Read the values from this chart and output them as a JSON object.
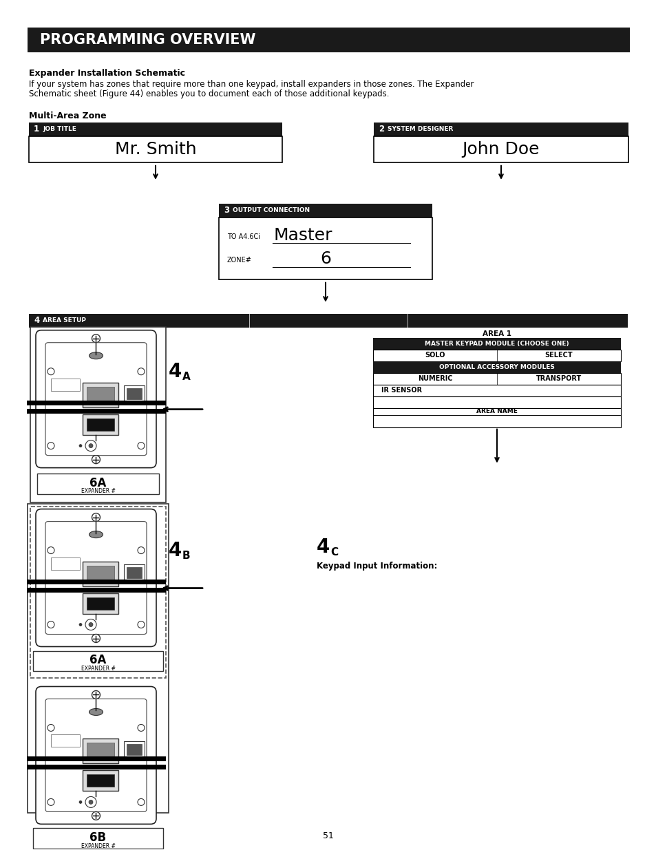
{
  "bg_color": "#ffffff",
  "title_bar_text": "PROGRAMMING OVERVIEW",
  "title_bar_bg": "#1a1a1a",
  "title_bar_color": "#ffffff",
  "section_heading": "Expander Installation Schematic",
  "section_body_1": "If your system has zones that require more than one keypad, install expanders in those zones. The Expander",
  "section_body_2": "Schematic sheet (Figure 44) enables you to document each of those additional keypads.",
  "multi_area_label": "Multi-Area Zone",
  "box1_num": "1",
  "box1_label": "JOB TITLE",
  "box1_value": "Mr. Smith",
  "box2_num": "2",
  "box2_label": "SYSTEM DESIGNER",
  "box2_value": "John Doe",
  "box3_num": "3",
  "box3_label": "OUTPUT CONNECTION",
  "box3_line1_label": "TO A4.6Ci",
  "box3_line1_value": "Master",
  "box3_line2_label": "ZONE#",
  "box3_line2_value": "6",
  "box4_num": "4",
  "box4_label": "AREA SETUP",
  "label_4a": "4",
  "label_4a_sub": "A",
  "label_4b": "4",
  "label_4b_sub": "B",
  "label_4c": "4",
  "label_4c_sub": "C",
  "label_4c_text": "Keypad Input Information:",
  "area1_title": "AREA 1",
  "area1_row1": "MASTER KEYPAD MODULE (CHOOSE ONE)",
  "area1_row2a": "SOLO",
  "area1_row2b": "SELECT",
  "area1_row3": "OPTIONAL ACCESSORY MODULES",
  "area1_row4a": "NUMERIC",
  "area1_row4b": "TRANSPORT",
  "area1_row5": "IR SENSOR",
  "area1_area_name": "AREA NAME",
  "expander_6a": "6A",
  "expander_6a_sub": "EXPANDER #",
  "expander_6b": "6B",
  "expander_6b_sub": "EXPANDER #",
  "page_num": "51"
}
